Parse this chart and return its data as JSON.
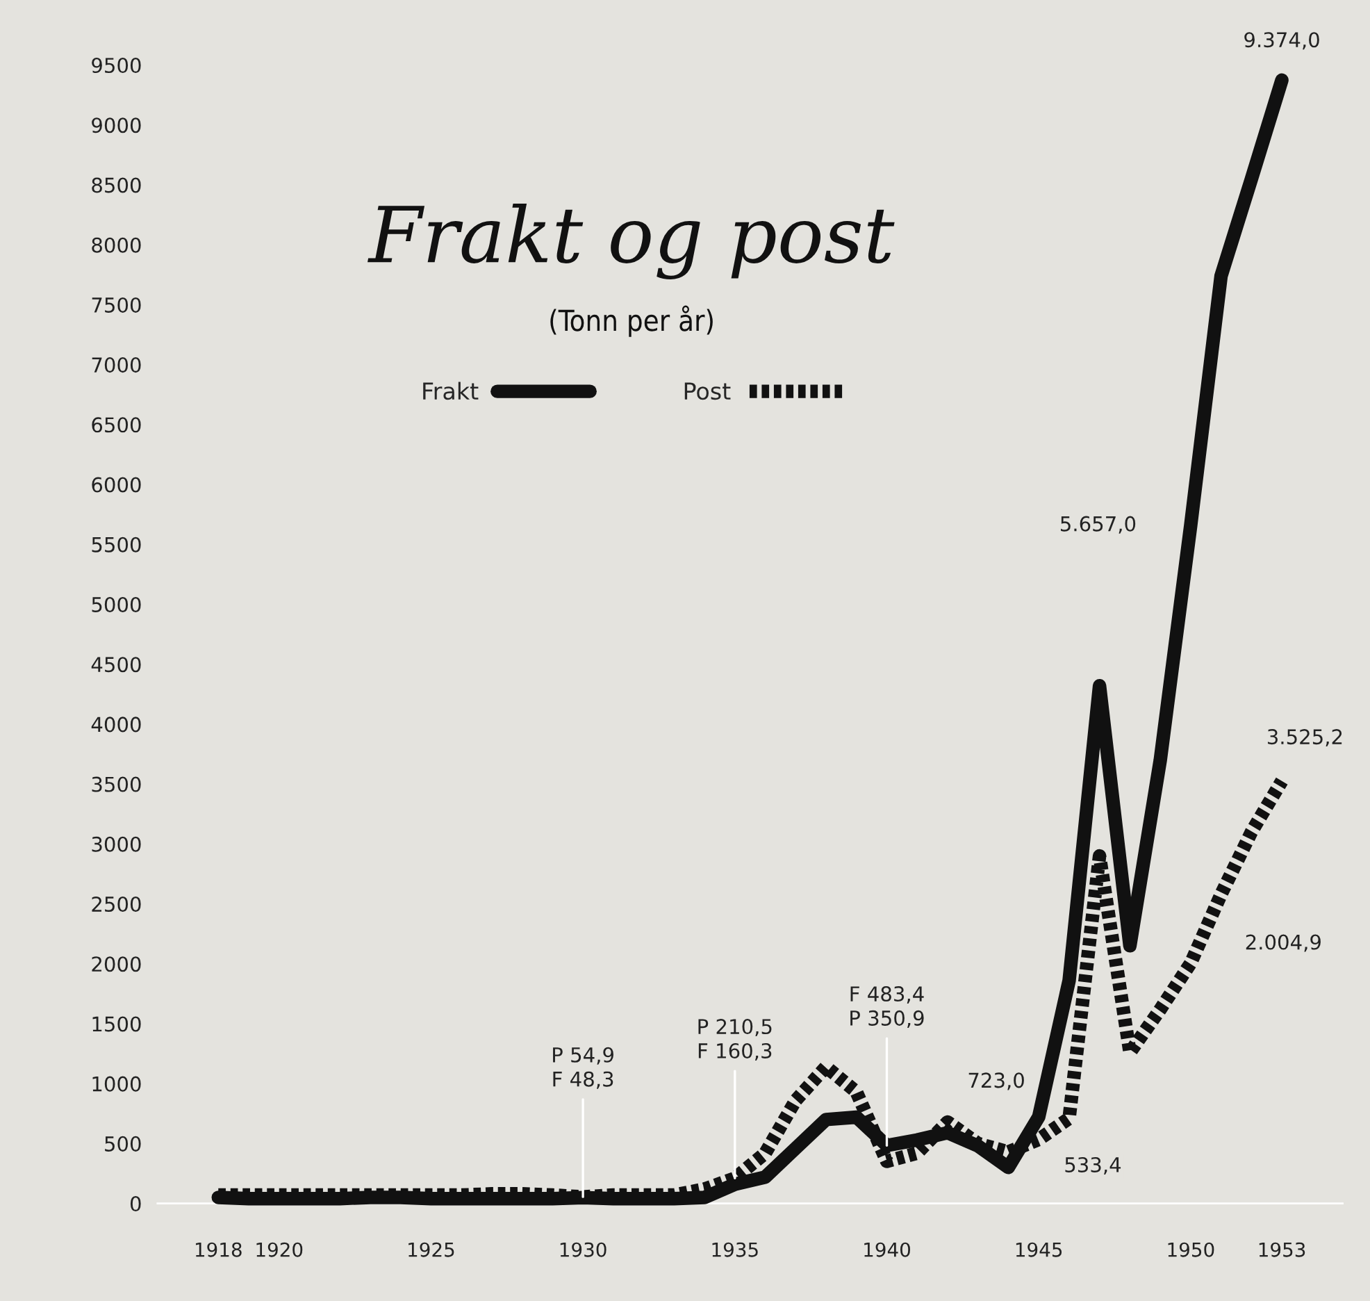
{
  "chart_data": {
    "type": "line",
    "title": "Frakt og post",
    "subtitle": "(Tonn per år)",
    "x": [
      1918,
      1919,
      1920,
      1921,
      1922,
      1923,
      1924,
      1925,
      1926,
      1927,
      1928,
      1929,
      1930,
      1931,
      1932,
      1933,
      1934,
      1935,
      1936,
      1937,
      1938,
      1939,
      1940,
      1941,
      1942,
      1943,
      1944,
      1945,
      1946,
      1947,
      1948,
      1949,
      1950,
      1951,
      1952,
      1953
    ],
    "series": [
      {
        "name": "Frakt",
        "color": "#111111",
        "line_style": "solid",
        "values": [
          50,
          40,
          40,
          40,
          40,
          50,
          50,
          40,
          40,
          40,
          40,
          40,
          48.3,
          40,
          40,
          40,
          50,
          160.3,
          220,
          460,
          700,
          720,
          483.4,
          530,
          590,
          480,
          300,
          723.0,
          1860,
          4320,
          2150,
          3700,
          5657.0,
          7740,
          8550,
          9374.0
        ]
      },
      {
        "name": "Post",
        "color": "#111111",
        "line_style": "dotted",
        "values": [
          70,
          70,
          70,
          70,
          70,
          70,
          70,
          70,
          70,
          80,
          80,
          70,
          54.9,
          70,
          70,
          70,
          120,
          210.5,
          420,
          860,
          1140,
          930,
          350.9,
          420,
          680,
          500,
          430,
          533.4,
          710,
          2900,
          1260,
          1620,
          2004.9,
          2580,
          3100,
          3525.2
        ]
      }
    ],
    "xlim": [
      1916,
      1955
    ],
    "xticks": [
      1918,
      1920,
      1925,
      1930,
      1935,
      1940,
      1945,
      1950,
      1953
    ],
    "ylim": [
      0,
      9500
    ],
    "yticks": [
      0,
      500,
      1000,
      1500,
      2000,
      2500,
      3000,
      3500,
      4000,
      4500,
      5000,
      5500,
      6000,
      6500,
      7000,
      7500,
      8000,
      8500,
      9000,
      9500
    ],
    "grid": false,
    "legend": "top",
    "marker": "none",
    "annotations": [
      {
        "text": "P 54,9\nF 48,3",
        "x": 1930,
        "y": 54.9
      },
      {
        "text": "P 210,5\nF 160,3",
        "x": 1935,
        "y": 210.5
      },
      {
        "text": "F 483,4\nP 350,9",
        "x": 1940,
        "y": 483.4
      },
      {
        "text": "723,0",
        "x": 1945,
        "y": 723.0
      },
      {
        "text": "533,4",
        "x": 1945,
        "y": 533.4
      },
      {
        "text": "5.657,0",
        "x": 1950,
        "y": 5657.0
      },
      {
        "text": "2.004,9",
        "x": 1950,
        "y": 2004.9
      },
      {
        "text": "9.374,0",
        "x": 1953,
        "y": 9374.0
      },
      {
        "text": "3.525,2",
        "x": 1953,
        "y": 3525.2
      }
    ]
  }
}
